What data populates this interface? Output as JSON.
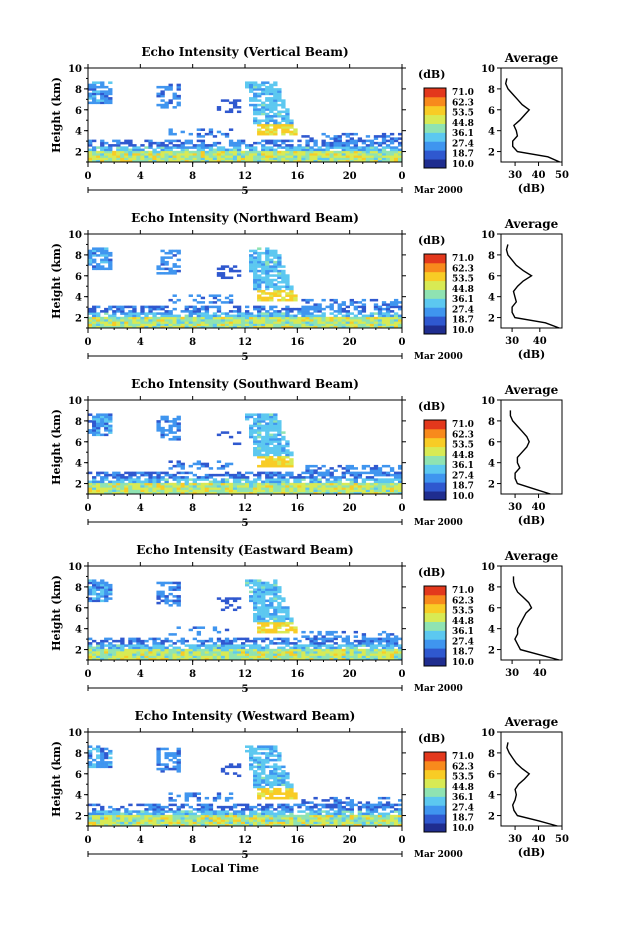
{
  "figure": {
    "xlabel_bottom": "Local Time",
    "date_label": "Mar 2000",
    "colorbar_unit": "(dB)",
    "colorbar_ticks": [
      "71.0",
      "62.3",
      "53.5",
      "44.8",
      "36.1",
      "27.4",
      "18.7",
      "10.0"
    ],
    "colorbar_colors": [
      "#1f2d8f",
      "#2f58cf",
      "#3f95ef",
      "#5cc8f0",
      "#8fe3b2",
      "#d8ea54",
      "#f8cc25",
      "#f88a1c",
      "#e3381c"
    ]
  },
  "chart_data": [
    {
      "type": "heatmap",
      "title": "Echo Intensity (Vertical Beam)",
      "ylabel": "Height (km)",
      "xlabel": "",
      "x_ticks": [
        "0",
        "4",
        "8",
        "12",
        "16",
        "20",
        "0"
      ],
      "x_range": [
        0,
        24
      ],
      "y_ticks": [
        "2",
        "4",
        "6",
        "8",
        "10"
      ],
      "y_range": [
        1,
        10
      ],
      "x_marker": "5",
      "color_range": [
        10.0,
        71.0
      ],
      "profile": {
        "title": "Average",
        "xlabel": "(dB)",
        "x_ticks": [
          "30",
          "40",
          "50"
        ],
        "x_range": [
          24,
          50
        ],
        "height": [
          1.0,
          1.5,
          2.0,
          2.5,
          3.0,
          3.5,
          4.0,
          4.5,
          5.0,
          5.5,
          6.0,
          6.5,
          7.0,
          7.5,
          8.0,
          8.5,
          9.0
        ],
        "value": [
          49.0,
          44.0,
          31.0,
          29.0,
          29.0,
          31.0,
          30.5,
          29.5,
          32.0,
          34.0,
          36.0,
          33.0,
          31.0,
          29.0,
          27.0,
          26.0,
          26.5
        ]
      }
    },
    {
      "type": "heatmap",
      "title": "Echo Intensity (Northward Beam)",
      "ylabel": "Height (km)",
      "xlabel": "",
      "x_ticks": [
        "0",
        "4",
        "8",
        "12",
        "16",
        "20",
        "0"
      ],
      "x_range": [
        0,
        24
      ],
      "y_ticks": [
        "2",
        "4",
        "6",
        "8",
        "10"
      ],
      "y_range": [
        1,
        10
      ],
      "x_marker": "5",
      "color_range": [
        10.0,
        71.0
      ],
      "profile": {
        "title": "Average",
        "xlabel": "(dB)",
        "x_ticks": [
          "30",
          "40"
        ],
        "x_range": [
          26,
          48
        ],
        "height": [
          1.0,
          1.5,
          2.0,
          2.5,
          3.0,
          3.5,
          4.0,
          4.5,
          5.0,
          5.5,
          6.0,
          6.5,
          7.0,
          7.5,
          8.0,
          8.5,
          9.0
        ],
        "value": [
          47.0,
          42.0,
          31.0,
          30.0,
          30.0,
          31.5,
          31.0,
          30.5,
          32.0,
          34.0,
          37.0,
          34.0,
          31.5,
          30.0,
          28.5,
          28.0,
          28.5
        ]
      }
    },
    {
      "type": "heatmap",
      "title": "Echo Intensity (Southward Beam)",
      "ylabel": "Height (km)",
      "xlabel": "",
      "x_ticks": [
        "0",
        "4",
        "8",
        "12",
        "16",
        "20",
        "0"
      ],
      "x_range": [
        0,
        24
      ],
      "y_ticks": [
        "2",
        "4",
        "6",
        "8",
        "10"
      ],
      "y_range": [
        1,
        10
      ],
      "x_marker": "5",
      "color_range": [
        10.0,
        71.0
      ],
      "profile": {
        "title": "Average",
        "xlabel": "(dB)",
        "x_ticks": [
          "30",
          "40"
        ],
        "x_range": [
          24,
          50
        ],
        "height": [
          1.0,
          1.5,
          2.0,
          2.5,
          3.0,
          3.5,
          4.0,
          4.5,
          5.0,
          5.5,
          6.0,
          6.5,
          7.0,
          7.5,
          8.0,
          8.5,
          9.0
        ],
        "value": [
          45.0,
          38.0,
          31.0,
          30.0,
          30.0,
          32.0,
          31.0,
          31.0,
          33.0,
          35.0,
          36.0,
          35.0,
          33.0,
          31.0,
          29.0,
          28.0,
          28.0
        ]
      }
    },
    {
      "type": "heatmap",
      "title": "Echo Intensity (Eastward Beam)",
      "ylabel": "Height (km)",
      "xlabel": "",
      "x_ticks": [
        "0",
        "4",
        "8",
        "12",
        "16",
        "20",
        "0"
      ],
      "x_range": [
        0,
        24
      ],
      "y_ticks": [
        "2",
        "4",
        "6",
        "8",
        "10"
      ],
      "y_range": [
        1,
        10
      ],
      "x_marker": "5",
      "color_range": [
        10.0,
        71.0
      ],
      "profile": {
        "title": "Average",
        "xlabel": "",
        "x_ticks": [
          "30",
          "40"
        ],
        "x_range": [
          26,
          48
        ],
        "height": [
          1.0,
          1.5,
          2.0,
          2.5,
          3.0,
          3.5,
          4.0,
          4.5,
          5.0,
          5.5,
          6.0,
          6.5,
          7.0,
          7.5,
          8.0,
          8.5,
          9.0
        ],
        "value": [
          47.0,
          40.0,
          33.0,
          32.0,
          31.0,
          32.0,
          32.0,
          33.0,
          34.0,
          35.0,
          37.0,
          36.0,
          34.0,
          32.0,
          31.0,
          30.5,
          30.5
        ]
      }
    },
    {
      "type": "heatmap",
      "title": "Echo Intensity (Westward Beam)",
      "ylabel": "Height (km)",
      "xlabel": "Local Time",
      "x_ticks": [
        "0",
        "4",
        "8",
        "12",
        "16",
        "20",
        "0"
      ],
      "x_range": [
        0,
        24
      ],
      "y_ticks": [
        "2",
        "4",
        "6",
        "8",
        "10"
      ],
      "y_range": [
        1,
        10
      ],
      "x_marker": "5",
      "color_range": [
        10.0,
        71.0
      ],
      "profile": {
        "title": "Average",
        "xlabel": "(dB)",
        "x_ticks": [
          "30",
          "40",
          "50"
        ],
        "x_range": [
          24,
          50
        ],
        "height": [
          1.0,
          1.5,
          2.0,
          2.5,
          3.0,
          3.5,
          4.0,
          4.5,
          5.0,
          5.5,
          6.0,
          6.5,
          7.0,
          7.5,
          8.0,
          8.5,
          9.0
        ],
        "value": [
          48.0,
          40.0,
          31.0,
          29.5,
          29.0,
          30.0,
          30.5,
          30.0,
          31.5,
          34.0,
          36.0,
          33.0,
          30.5,
          29.0,
          27.5,
          26.5,
          27.0
        ]
      }
    }
  ]
}
